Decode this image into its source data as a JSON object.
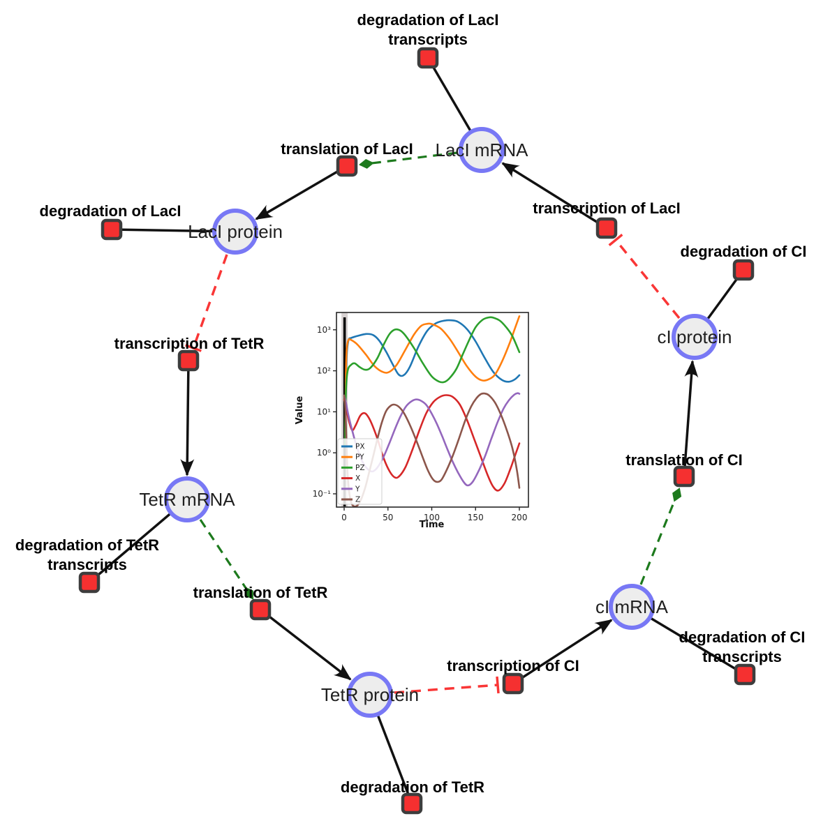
{
  "network": {
    "species": [
      {
        "id": "laci_mrna",
        "label": "LacI mRNA"
      },
      {
        "id": "laci_protein",
        "label": "LacI protein"
      },
      {
        "id": "tetr_mrna",
        "label": "TetR mRNA"
      },
      {
        "id": "tetr_protein",
        "label": "TetR protein"
      },
      {
        "id": "ci_mrna",
        "label": "cI mRNA"
      },
      {
        "id": "ci_protein",
        "label": "cI protein"
      }
    ],
    "reactions": [
      {
        "id": "deg_laci_transcripts",
        "lines": [
          "degradation of LacI",
          "transcripts"
        ]
      },
      {
        "id": "translation_laci",
        "lines": [
          "translation of LacI"
        ]
      },
      {
        "id": "transcription_laci",
        "lines": [
          "transcription of LacI"
        ]
      },
      {
        "id": "deg_laci",
        "lines": [
          "degradation of LacI"
        ]
      },
      {
        "id": "transcription_tetr",
        "lines": [
          "transcription of TetR"
        ]
      },
      {
        "id": "deg_ci",
        "lines": [
          "degradation of CI"
        ]
      },
      {
        "id": "deg_tetr_transcripts",
        "lines": [
          "degradation of TetR",
          "transcripts"
        ]
      },
      {
        "id": "translation_tetr",
        "lines": [
          "translation of TetR"
        ]
      },
      {
        "id": "translation_ci",
        "lines": [
          "translation of CI"
        ]
      },
      {
        "id": "transcription_ci",
        "lines": [
          "transcription of CI"
        ]
      },
      {
        "id": "deg_ci_transcripts",
        "lines": [
          "degradation of CI",
          "transcripts"
        ]
      },
      {
        "id": "deg_tetr",
        "lines": [
          "degradation of TetR"
        ]
      }
    ],
    "style": {
      "species_fill": "#ededed",
      "species_stroke": "#7878f5",
      "reaction_fill": "#f53030",
      "reaction_stroke": "#3d3d3d",
      "edge_color": "#111111",
      "activation_color": "#1d7a1d",
      "inhibition_color": "#f93636"
    }
  },
  "chart_data": {
    "type": "line",
    "xlabel": "Time",
    "ylabel": "Value",
    "yscale": "log",
    "xlim": [
      -10,
      210
    ],
    "ylim": [
      0.047,
      2900
    ],
    "x_ticks": [
      0,
      50,
      100,
      150,
      200
    ],
    "y_ticks": [
      {
        "value": 1000,
        "label": "10³"
      },
      {
        "value": 100,
        "label": "10²"
      },
      {
        "value": 10,
        "label": "10¹"
      },
      {
        "value": 1,
        "label": "10⁰"
      },
      {
        "value": 0.1,
        "label": "10⁻¹"
      }
    ],
    "grid": false,
    "legend_position": "lower left",
    "initial_marker": {
      "type": "vline",
      "x": 0.5,
      "color": "#000000"
    },
    "series": [
      {
        "name": "PX",
        "color": "#1f77b4",
        "points": [
          [
            1,
            1.5
          ],
          [
            2,
            40
          ],
          [
            3,
            250
          ],
          [
            5,
            560
          ],
          [
            8,
            630
          ],
          [
            15,
            705
          ],
          [
            25,
            790
          ],
          [
            33,
            745
          ],
          [
            40,
            545
          ],
          [
            48,
            290
          ],
          [
            55,
            150
          ],
          [
            62,
            82
          ],
          [
            68,
            78
          ],
          [
            75,
            125
          ],
          [
            85,
            400
          ],
          [
            95,
            950
          ],
          [
            105,
            1450
          ],
          [
            115,
            1680
          ],
          [
            122,
            1705
          ],
          [
            130,
            1560
          ],
          [
            140,
            1050
          ],
          [
            150,
            520
          ],
          [
            160,
            215
          ],
          [
            170,
            95
          ],
          [
            180,
            60
          ],
          [
            188,
            54
          ],
          [
            195,
            62
          ],
          [
            200,
            78
          ]
        ]
      },
      {
        "name": "PY",
        "color": "#ff7f0e",
        "points": [
          [
            1,
            1.5
          ],
          [
            2,
            80
          ],
          [
            3,
            350
          ],
          [
            5,
            570
          ],
          [
            8,
            565
          ],
          [
            15,
            440
          ],
          [
            25,
            245
          ],
          [
            35,
            128
          ],
          [
            45,
            92
          ],
          [
            52,
            95
          ],
          [
            60,
            140
          ],
          [
            70,
            330
          ],
          [
            80,
            780
          ],
          [
            88,
            1250
          ],
          [
            95,
            1400
          ],
          [
            100,
            1380
          ],
          [
            110,
            1080
          ],
          [
            120,
            620
          ],
          [
            130,
            290
          ],
          [
            140,
            130
          ],
          [
            150,
            72
          ],
          [
            158,
            58
          ],
          [
            165,
            62
          ],
          [
            172,
            80
          ],
          [
            180,
            165
          ],
          [
            188,
            420
          ],
          [
            194,
            950
          ],
          [
            200,
            2150
          ]
        ]
      },
      {
        "name": "PZ",
        "color": "#2ca02c",
        "points": [
          [
            1,
            1.5
          ],
          [
            2,
            30
          ],
          [
            4,
            100
          ],
          [
            8,
            140
          ],
          [
            12,
            152
          ],
          [
            18,
            122
          ],
          [
            24,
            106
          ],
          [
            30,
            118
          ],
          [
            38,
            205
          ],
          [
            45,
            430
          ],
          [
            52,
            800
          ],
          [
            58,
            1010
          ],
          [
            64,
            960
          ],
          [
            70,
            720
          ],
          [
            80,
            350
          ],
          [
            90,
            150
          ],
          [
            100,
            73
          ],
          [
            108,
            55
          ],
          [
            114,
            53
          ],
          [
            120,
            65
          ],
          [
            128,
            110
          ],
          [
            135,
            240
          ],
          [
            142,
            520
          ],
          [
            150,
            1150
          ],
          [
            158,
            1750
          ],
          [
            165,
            2000
          ],
          [
            170,
            1975
          ],
          [
            178,
            1650
          ],
          [
            185,
            1150
          ],
          [
            192,
            700
          ],
          [
            200,
            285
          ]
        ]
      },
      {
        "name": "X",
        "color": "#d62728",
        "points": [
          [
            0,
            20
          ],
          [
            2,
            14
          ],
          [
            5,
            6.5
          ],
          [
            9,
            3.6
          ],
          [
            13,
            4.6
          ],
          [
            18,
            7.8
          ],
          [
            22,
            9.3
          ],
          [
            26,
            8.4
          ],
          [
            31,
            5.4
          ],
          [
            38,
            2.2
          ],
          [
            45,
            0.75
          ],
          [
            52,
            0.35
          ],
          [
            58,
            0.25
          ],
          [
            63,
            0.27
          ],
          [
            70,
            0.45
          ],
          [
            78,
            1.2
          ],
          [
            86,
            3.6
          ],
          [
            94,
            9.5
          ],
          [
            102,
            17.5
          ],
          [
            110,
            23.5
          ],
          [
            117,
            25.5
          ],
          [
            124,
            23
          ],
          [
            132,
            15
          ],
          [
            140,
            6.5
          ],
          [
            148,
            2.3
          ],
          [
            156,
            0.8
          ],
          [
            164,
            0.28
          ],
          [
            170,
            0.15
          ],
          [
            176,
            0.12
          ],
          [
            183,
            0.18
          ],
          [
            190,
            0.42
          ],
          [
            195,
            0.85
          ],
          [
            200,
            1.7
          ]
        ]
      },
      {
        "name": "Y",
        "color": "#9467bd",
        "points": [
          [
            0,
            25
          ],
          [
            2,
            17
          ],
          [
            5,
            8
          ],
          [
            10,
            3
          ],
          [
            15,
            1.3
          ],
          [
            20,
            0.66
          ],
          [
            26,
            0.42
          ],
          [
            32,
            0.35
          ],
          [
            38,
            0.44
          ],
          [
            45,
            0.8
          ],
          [
            52,
            1.8
          ],
          [
            58,
            3.8
          ],
          [
            64,
            7.5
          ],
          [
            70,
            13
          ],
          [
            76,
            17.5
          ],
          [
            82,
            20
          ],
          [
            88,
            18.5
          ],
          [
            94,
            14.5
          ],
          [
            100,
            9
          ],
          [
            106,
            5
          ],
          [
            112,
            2.5
          ],
          [
            118,
            1.2
          ],
          [
            124,
            0.6
          ],
          [
            130,
            0.33
          ],
          [
            136,
            0.2
          ],
          [
            141,
            0.16
          ],
          [
            147,
            0.2
          ],
          [
            154,
            0.38
          ],
          [
            161,
            0.85
          ],
          [
            168,
            2.2
          ],
          [
            175,
            5.5
          ],
          [
            182,
            12
          ],
          [
            188,
            19
          ],
          [
            194,
            26
          ],
          [
            198,
            28.5
          ],
          [
            200,
            27.5
          ]
        ]
      },
      {
        "name": "Z",
        "color": "#8c564b",
        "points": [
          [
            0,
            25
          ],
          [
            1,
            15
          ],
          [
            2,
            5
          ],
          [
            3,
            1
          ],
          [
            4,
            0.3
          ],
          [
            6,
            0.1
          ],
          [
            9,
            0.055
          ],
          [
            14,
            0.05
          ],
          [
            19,
            0.07
          ],
          [
            24,
            0.14
          ],
          [
            28,
            0.3
          ],
          [
            33,
            0.8
          ],
          [
            38,
            2.2
          ],
          [
            43,
            5.5
          ],
          [
            48,
            10.5
          ],
          [
            53,
            14
          ],
          [
            57,
            15
          ],
          [
            62,
            13.5
          ],
          [
            68,
            9.5
          ],
          [
            75,
            4.8
          ],
          [
            82,
            2.1
          ],
          [
            89,
            0.85
          ],
          [
            95,
            0.4
          ],
          [
            101,
            0.23
          ],
          [
            106,
            0.195
          ],
          [
            111,
            0.22
          ],
          [
            117,
            0.38
          ],
          [
            124,
            0.85
          ],
          [
            131,
            2.2
          ],
          [
            138,
            6
          ],
          [
            145,
            13.5
          ],
          [
            151,
            21.5
          ],
          [
            156,
            27
          ],
          [
            160,
            28
          ],
          [
            165,
            25.5
          ],
          [
            172,
            17
          ],
          [
            179,
            8.5
          ],
          [
            186,
            3.4
          ],
          [
            192,
            1.3
          ],
          [
            197,
            0.4
          ],
          [
            200,
            0.14
          ]
        ]
      }
    ]
  }
}
